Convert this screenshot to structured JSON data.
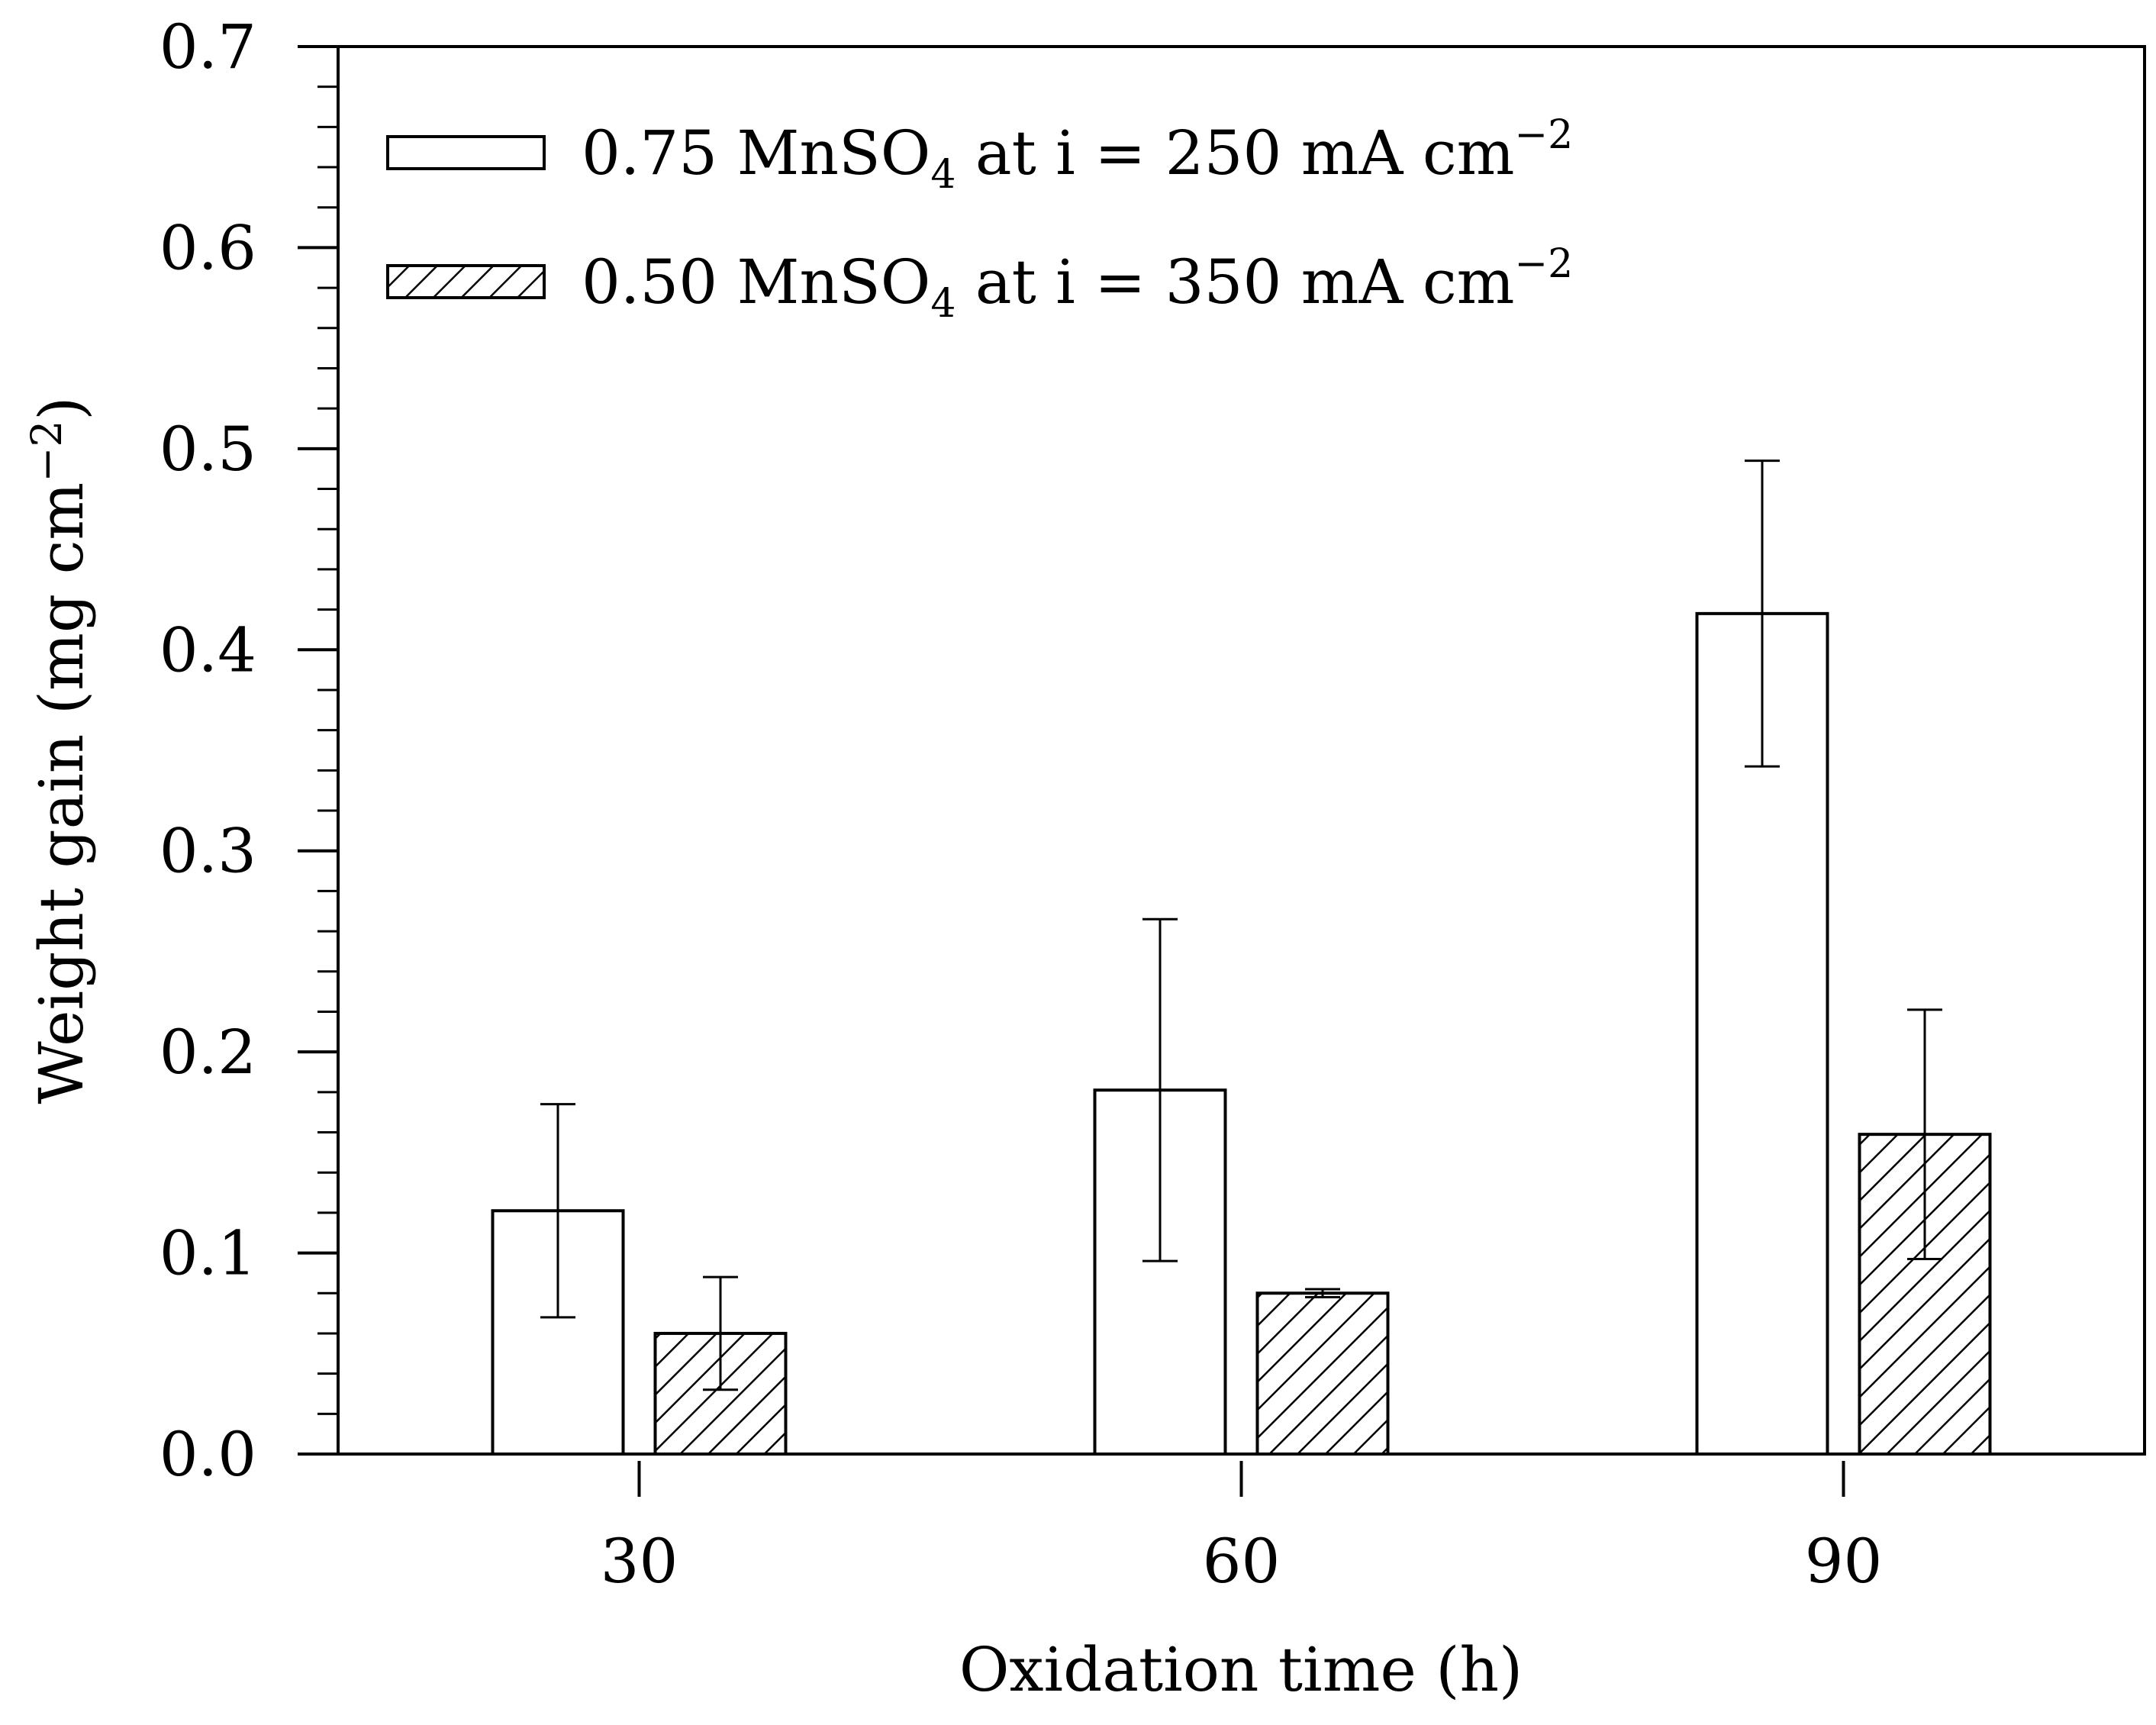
{
  "chart_data": {
    "type": "bar",
    "title": "",
    "xlabel": "Oxidation time (h)",
    "ylabel": {
      "main": "Weight gain (mg cm",
      "superscript": "−2",
      "close": ")"
    },
    "categories": [
      "30",
      "60",
      "90"
    ],
    "ylim": [
      0,
      0.7
    ],
    "yticks": [
      "0.0",
      "0.1",
      "0.2",
      "0.3",
      "0.4",
      "0.5",
      "0.6",
      "0.7"
    ],
    "grid": false,
    "legend_position": "top-left",
    "series": [
      {
        "name": "0.75 MnSO4 at i = 250 mA cm−2",
        "legend": {
          "pre": "0.75 MnSO",
          "sub": "4",
          "mid": " at i = 250 mA cm",
          "sup": "−2"
        },
        "fill": "none",
        "values": [
          0.121,
          0.181,
          0.418
        ],
        "errors": [
          0.053,
          0.085,
          0.076
        ]
      },
      {
        "name": "0.50 MnSO4 at i = 350 mA cm−2",
        "legend": {
          "pre": "0.50 MnSO",
          "sub": "4",
          "mid": " at i = 350 mA cm",
          "sup": "−2"
        },
        "fill": "hatch",
        "values": [
          0.06,
          0.08,
          0.159
        ],
        "errors": [
          0.028,
          0.002,
          0.062
        ]
      }
    ]
  }
}
